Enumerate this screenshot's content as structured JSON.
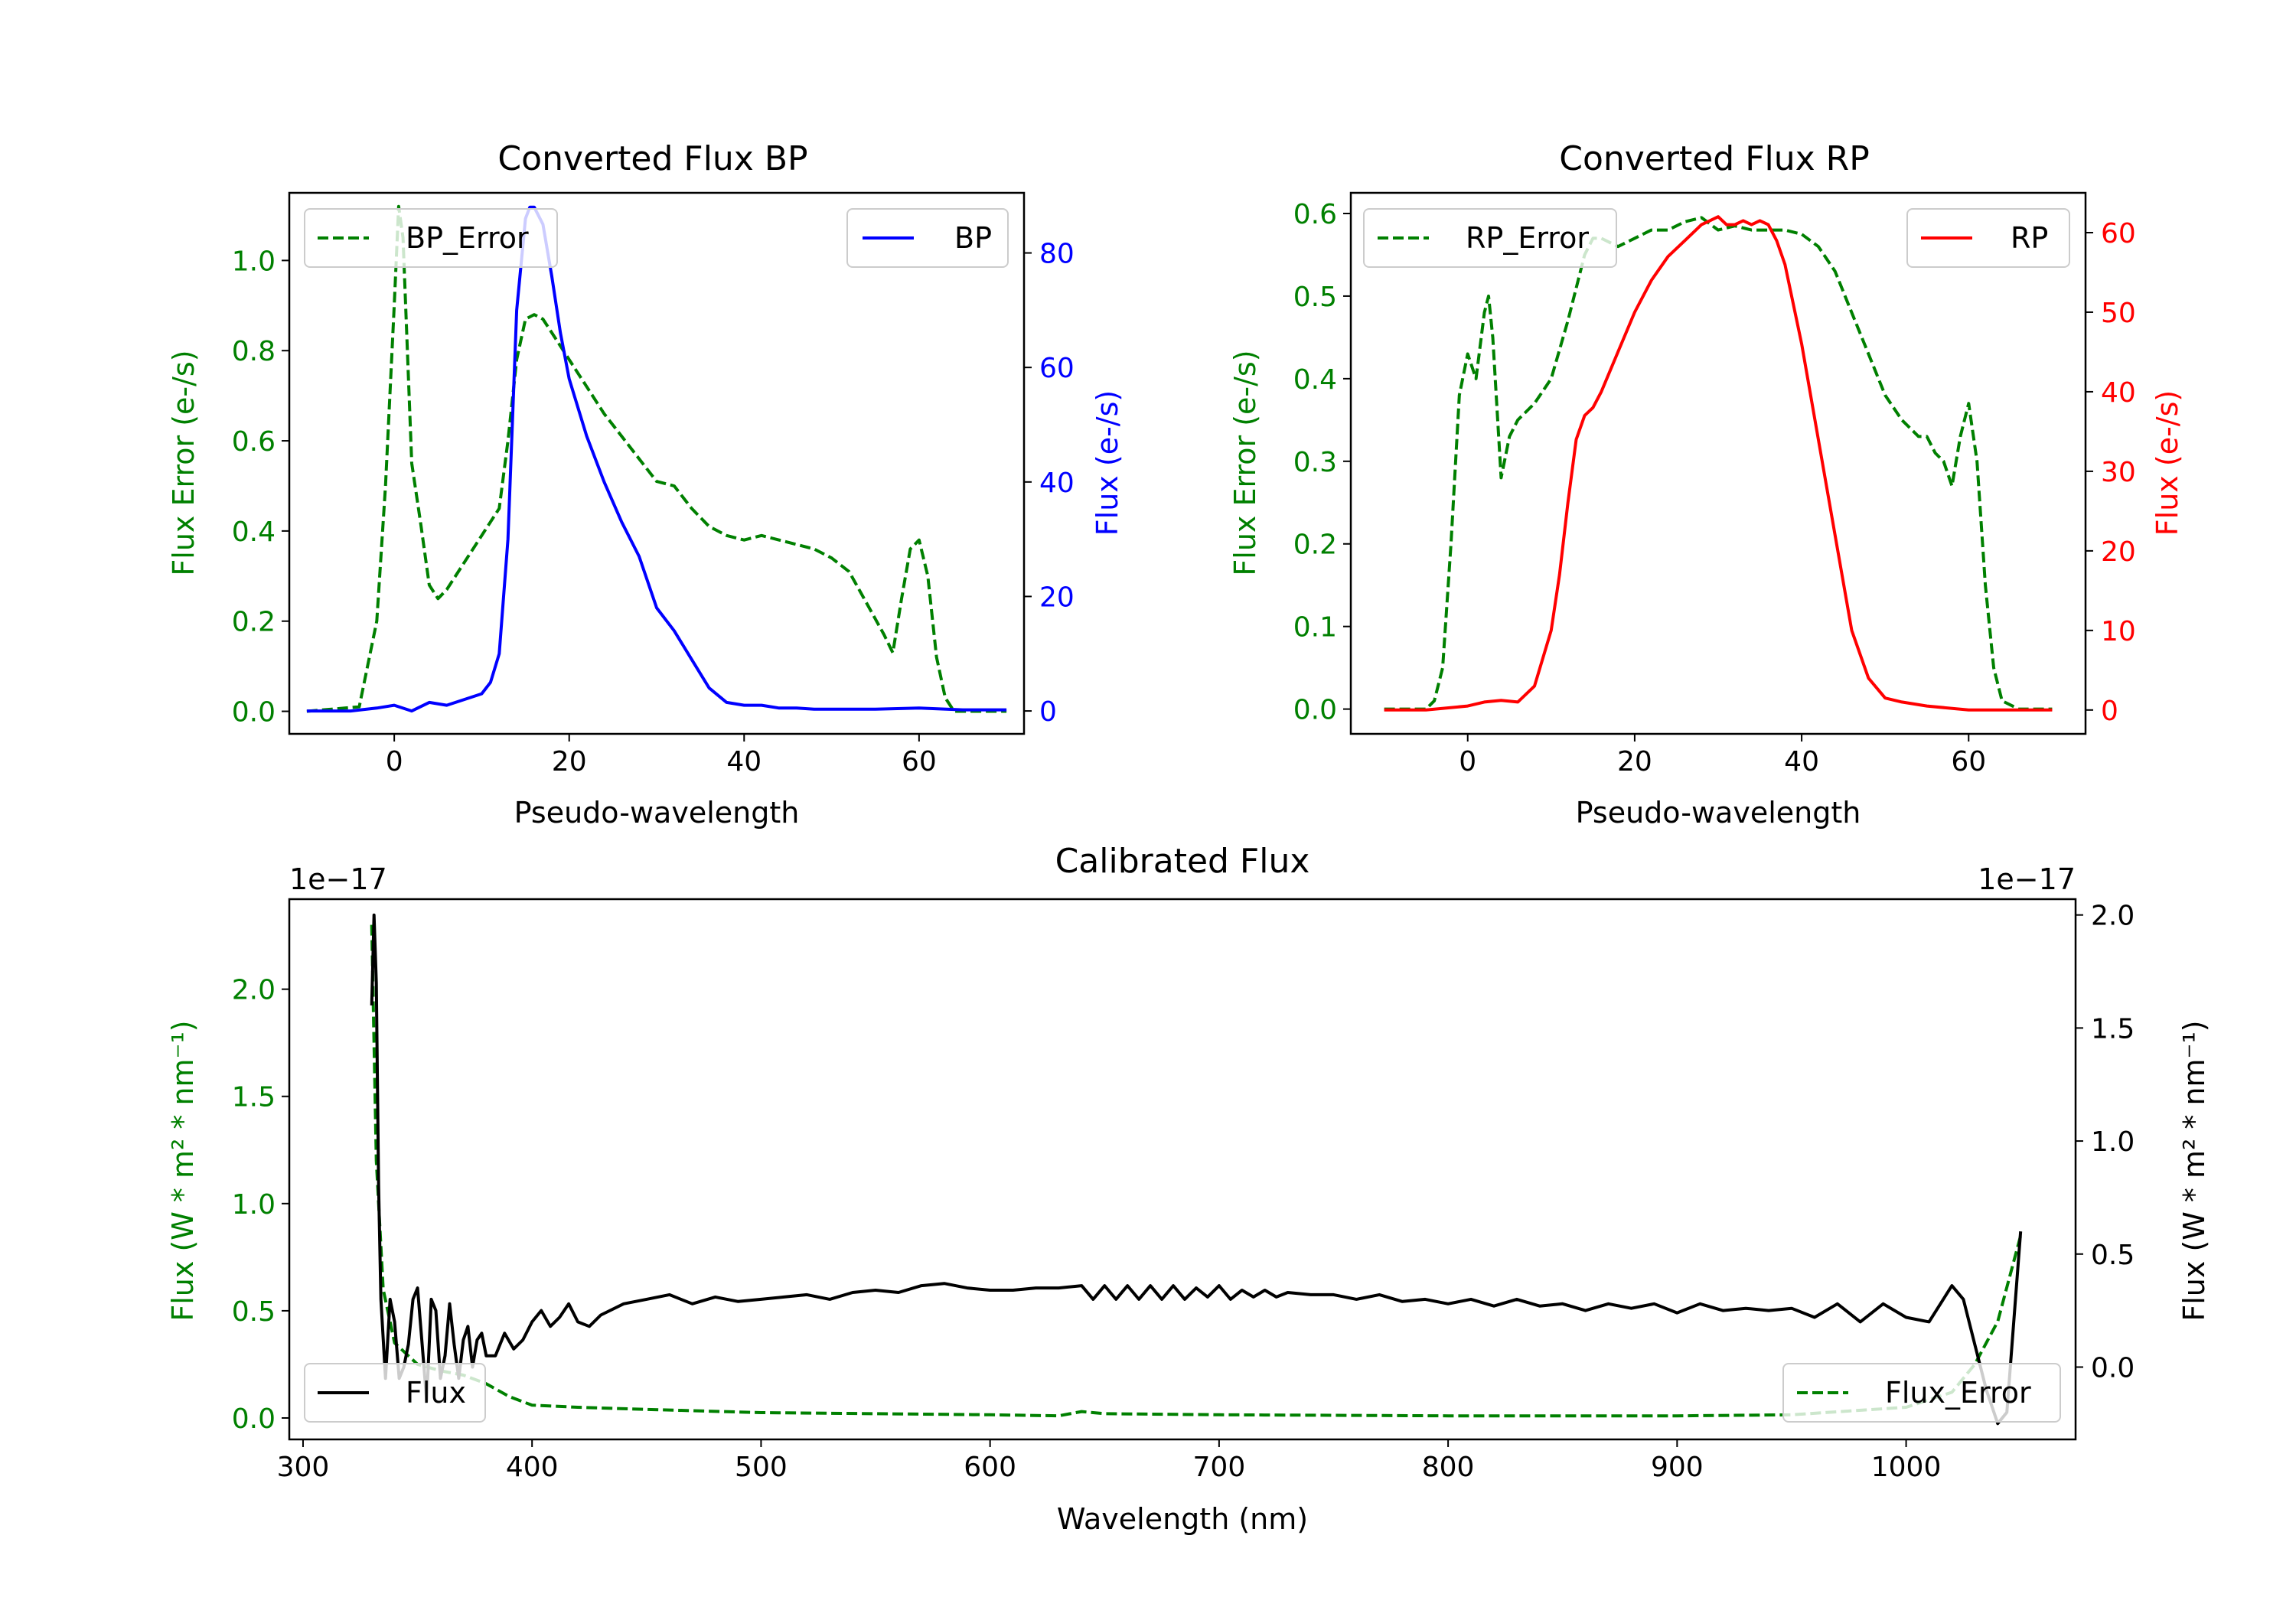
{
  "colors": {
    "error": "#008000",
    "bp": "#0000ff",
    "rp": "#ff0000",
    "flux": "#000000",
    "axis": "#000000",
    "legend_edge": "#cccccc"
  },
  "chart_data": [
    {
      "id": "bp",
      "type": "line",
      "title": "Converted Flux BP",
      "xlabel": "Pseudo-wavelength",
      "ylabel_left": "Flux Error (e-/s)",
      "ylabel_right": "Flux (e-/s)",
      "xlim": [
        -12,
        72
      ],
      "ylim_left": [
        -0.05,
        1.15
      ],
      "ylim_right": [
        -4,
        90.5
      ],
      "xticks": [
        0,
        20,
        40,
        60
      ],
      "yticks_left": [
        0.0,
        0.2,
        0.4,
        0.6,
        0.8,
        1.0
      ],
      "yticks_left_labels": [
        "0.0",
        "0.2",
        "0.4",
        "0.6",
        "0.8",
        "1.0"
      ],
      "yticks_right": [
        0,
        20,
        40,
        60,
        80
      ],
      "yticks_right_labels": [
        "0",
        "20",
        "40",
        "60",
        "80"
      ],
      "legend_left": "BP_Error",
      "legend_right": "BP",
      "series": [
        {
          "name": "BP_Error",
          "axis": "left",
          "style": "dashed",
          "color_key": "error",
          "x": [
            -10,
            -4,
            -2,
            -1,
            0,
            0.5,
            1,
            2,
            3,
            4,
            5,
            6,
            8,
            10,
            12,
            13,
            14,
            15,
            16,
            17,
            18,
            20,
            22,
            24,
            26,
            28,
            30,
            32,
            34,
            36,
            38,
            40,
            42,
            44,
            46,
            48,
            50,
            52,
            54,
            56,
            57,
            58,
            59,
            60,
            61,
            62,
            63,
            64,
            66,
            70
          ],
          "y": [
            0.0,
            0.01,
            0.2,
            0.5,
            0.9,
            1.12,
            1.05,
            0.55,
            0.42,
            0.28,
            0.25,
            0.27,
            0.33,
            0.39,
            0.45,
            0.6,
            0.78,
            0.87,
            0.88,
            0.87,
            0.84,
            0.78,
            0.72,
            0.66,
            0.61,
            0.56,
            0.51,
            0.5,
            0.45,
            0.41,
            0.39,
            0.38,
            0.39,
            0.38,
            0.37,
            0.36,
            0.34,
            0.31,
            0.24,
            0.17,
            0.13,
            0.25,
            0.36,
            0.38,
            0.3,
            0.12,
            0.03,
            0.0,
            0.0,
            0.0
          ]
        },
        {
          "name": "BP",
          "axis": "right",
          "style": "solid",
          "color_key": "bp",
          "x": [
            -10,
            -5,
            -2,
            0,
            2,
            4,
            6,
            8,
            10,
            11,
            12,
            13,
            14,
            15,
            15.5,
            16,
            17,
            18,
            19,
            20,
            22,
            24,
            26,
            28,
            30,
            32,
            34,
            36,
            38,
            40,
            42,
            44,
            46,
            48,
            50,
            55,
            60,
            65,
            70
          ],
          "y": [
            0,
            0,
            0.5,
            1,
            0,
            1.5,
            1,
            2,
            3,
            5,
            10,
            30,
            70,
            86,
            88,
            88,
            85,
            76,
            66,
            58,
            48,
            40,
            33,
            27,
            18,
            14,
            9,
            4,
            1.5,
            1,
            1,
            0.5,
            0.5,
            0.3,
            0.3,
            0.3,
            0.5,
            0.2,
            0.2
          ]
        }
      ]
    },
    {
      "id": "rp",
      "type": "line",
      "title": "Converted Flux RP",
      "xlabel": "Pseudo-wavelength",
      "ylabel_left": "Flux Error (e-/s)",
      "ylabel_right": "Flux (e-/s)",
      "xlim": [
        -14,
        74
      ],
      "ylim_left": [
        -0.03,
        0.625
      ],
      "ylim_right": [
        -3,
        65
      ],
      "xticks": [
        0,
        20,
        40,
        60
      ],
      "yticks_left": [
        0.0,
        0.1,
        0.2,
        0.3,
        0.4,
        0.5,
        0.6
      ],
      "yticks_left_labels": [
        "0.0",
        "0.1",
        "0.2",
        "0.3",
        "0.4",
        "0.5",
        "0.6"
      ],
      "yticks_right": [
        0,
        10,
        20,
        30,
        40,
        50,
        60
      ],
      "yticks_right_labels": [
        "0",
        "10",
        "20",
        "30",
        "40",
        "50",
        "60"
      ],
      "legend_left": "RP_Error",
      "legend_right": "RP",
      "series": [
        {
          "name": "RP_Error",
          "axis": "left",
          "style": "dashed",
          "color_key": "error",
          "x": [
            -10,
            -5,
            -4,
            -3,
            -2,
            -1,
            0,
            1,
            2,
            2.5,
            3,
            4,
            5,
            6,
            8,
            10,
            12,
            14,
            15,
            16,
            18,
            20,
            22,
            24,
            26,
            28,
            30,
            32,
            34,
            36,
            38,
            40,
            42,
            44,
            46,
            48,
            50,
            52,
            54,
            55,
            56,
            57,
            58,
            59,
            60,
            61,
            62,
            63,
            64,
            66,
            70
          ],
          "y": [
            0.0,
            0.0,
            0.01,
            0.05,
            0.2,
            0.38,
            0.43,
            0.4,
            0.48,
            0.5,
            0.45,
            0.28,
            0.33,
            0.35,
            0.37,
            0.4,
            0.47,
            0.55,
            0.57,
            0.57,
            0.56,
            0.57,
            0.58,
            0.58,
            0.59,
            0.595,
            0.58,
            0.585,
            0.58,
            0.58,
            0.58,
            0.575,
            0.56,
            0.53,
            0.48,
            0.43,
            0.38,
            0.35,
            0.33,
            0.33,
            0.31,
            0.3,
            0.27,
            0.33,
            0.37,
            0.3,
            0.15,
            0.05,
            0.01,
            0.0,
            0.0
          ]
        },
        {
          "name": "RP",
          "axis": "right",
          "style": "solid",
          "color_key": "rp",
          "x": [
            -10,
            -5,
            0,
            2,
            4,
            6,
            8,
            10,
            11,
            12,
            13,
            14,
            15,
            16,
            18,
            20,
            22,
            24,
            26,
            28,
            29,
            30,
            31,
            32,
            33,
            34,
            35,
            36,
            37,
            38,
            40,
            42,
            44,
            46,
            48,
            50,
            52,
            55,
            60,
            65,
            70
          ],
          "y": [
            0,
            0,
            0.5,
            1,
            1.2,
            1,
            3,
            10,
            17,
            26,
            34,
            37,
            38,
            40,
            45,
            50,
            54,
            57,
            59,
            61,
            61.5,
            62,
            61,
            61,
            61.5,
            61,
            61.5,
            61,
            59,
            56,
            46,
            34,
            22,
            10,
            4,
            1.5,
            1,
            0.5,
            0,
            0,
            0
          ]
        }
      ]
    },
    {
      "id": "cal",
      "type": "line",
      "title": "Calibrated Flux",
      "xlabel": "Wavelength (nm)",
      "ylabel_left": "Flux (W * m² * nm⁻¹)",
      "ylabel_right": "Flux (W * m² * nm⁻¹)",
      "offset_left": "1e−17",
      "offset_right": "1e−17",
      "xlim": [
        294,
        1074
      ],
      "ylim_left": [
        -0.1,
        2.42
      ],
      "ylim_right": [
        -0.32,
        2.07
      ],
      "xticks": [
        300,
        400,
        500,
        600,
        700,
        800,
        900,
        1000
      ],
      "yticks_left": [
        0.0,
        0.5,
        1.0,
        1.5,
        2.0
      ],
      "yticks_left_labels": [
        "0.0",
        "0.5",
        "1.0",
        "1.5",
        "2.0"
      ],
      "yticks_right": [
        0.0,
        0.5,
        1.0,
        1.5,
        2.0
      ],
      "yticks_right_labels": [
        "0.0",
        "0.5",
        "1.0",
        "1.5",
        "2.0"
      ],
      "legend_left": "Flux",
      "legend_right": "Flux_Error",
      "series": [
        {
          "name": "Flux_Error",
          "axis": "left",
          "style": "dashed",
          "color_key": "error",
          "x": [
            330,
            332,
            335,
            340,
            350,
            360,
            370,
            380,
            390,
            400,
            420,
            450,
            500,
            550,
            600,
            630,
            640,
            650,
            700,
            800,
            900,
            950,
            1000,
            1020,
            1030,
            1040,
            1045,
            1050
          ],
          "y": [
            2.3,
            1.2,
            0.6,
            0.35,
            0.25,
            0.22,
            0.2,
            0.16,
            0.1,
            0.06,
            0.05,
            0.04,
            0.025,
            0.02,
            0.015,
            0.01,
            0.03,
            0.02,
            0.015,
            0.01,
            0.01,
            0.015,
            0.05,
            0.12,
            0.25,
            0.45,
            0.65,
            0.85
          ]
        },
        {
          "name": "Flux",
          "axis": "right",
          "style": "solid",
          "color_key": "flux",
          "x": [
            330,
            331,
            332,
            333,
            334,
            336,
            338,
            340,
            342,
            344,
            346,
            348,
            350,
            352,
            354,
            356,
            358,
            360,
            362,
            364,
            366,
            368,
            370,
            372,
            374,
            376,
            378,
            380,
            384,
            388,
            392,
            396,
            400,
            404,
            408,
            412,
            416,
            420,
            425,
            430,
            440,
            450,
            460,
            470,
            480,
            490,
            500,
            510,
            520,
            530,
            540,
            550,
            560,
            570,
            580,
            590,
            600,
            610,
            620,
            630,
            640,
            645,
            650,
            655,
            660,
            665,
            670,
            675,
            680,
            685,
            690,
            695,
            700,
            705,
            710,
            715,
            720,
            725,
            730,
            740,
            750,
            760,
            770,
            780,
            790,
            800,
            810,
            820,
            830,
            840,
            850,
            860,
            870,
            880,
            890,
            900,
            910,
            920,
            930,
            940,
            950,
            960,
            970,
            980,
            990,
            1000,
            1010,
            1020,
            1025,
            1030,
            1035,
            1040,
            1044,
            1047,
            1050
          ],
          "y": [
            1.6,
            2.0,
            1.7,
            0.8,
            0.3,
            -0.05,
            0.3,
            0.2,
            -0.05,
            0.0,
            0.1,
            0.3,
            0.35,
            0.1,
            -0.15,
            0.3,
            0.25,
            -0.05,
            0.05,
            0.28,
            0.1,
            -0.05,
            0.12,
            0.18,
            0.0,
            0.12,
            0.15,
            0.05,
            0.05,
            0.15,
            0.08,
            0.12,
            0.2,
            0.25,
            0.18,
            0.22,
            0.28,
            0.2,
            0.18,
            0.23,
            0.28,
            0.3,
            0.32,
            0.28,
            0.31,
            0.29,
            0.3,
            0.31,
            0.32,
            0.3,
            0.33,
            0.34,
            0.33,
            0.36,
            0.37,
            0.35,
            0.34,
            0.34,
            0.35,
            0.35,
            0.36,
            0.3,
            0.36,
            0.3,
            0.36,
            0.3,
            0.36,
            0.3,
            0.36,
            0.3,
            0.35,
            0.31,
            0.36,
            0.3,
            0.34,
            0.31,
            0.34,
            0.31,
            0.33,
            0.32,
            0.32,
            0.3,
            0.32,
            0.29,
            0.3,
            0.28,
            0.3,
            0.27,
            0.3,
            0.27,
            0.28,
            0.25,
            0.28,
            0.26,
            0.28,
            0.24,
            0.28,
            0.25,
            0.26,
            0.25,
            0.26,
            0.22,
            0.28,
            0.2,
            0.28,
            0.22,
            0.2,
            0.36,
            0.3,
            0.1,
            -0.1,
            -0.25,
            -0.2,
            0.2,
            0.6
          ]
        }
      ]
    }
  ]
}
